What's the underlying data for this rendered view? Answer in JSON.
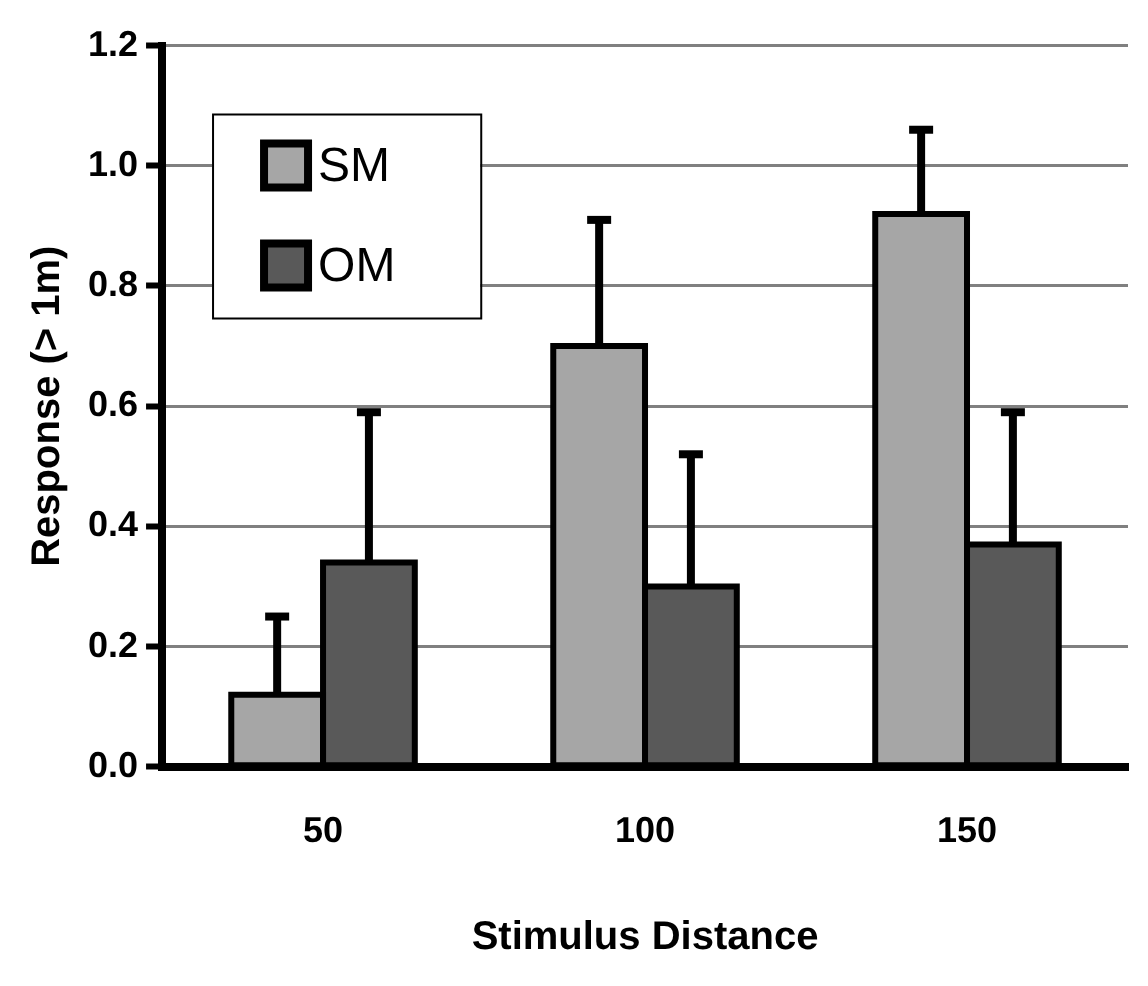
{
  "chart_data": {
    "type": "bar",
    "xlabel": "Stimulus Distance",
    "ylabel": "Response (> 1m)",
    "categories": [
      "50",
      "100",
      "150"
    ],
    "series": [
      {
        "name": "SM",
        "color": "#a6a6a6",
        "values": [
          0.12,
          0.7,
          0.92
        ],
        "errors": [
          [
            0.12,
            0.25
          ],
          [
            0.7,
            0.91
          ],
          [
            0.92,
            1.06
          ]
        ]
      },
      {
        "name": "OM",
        "color": "#595959",
        "values": [
          0.34,
          0.3,
          0.37
        ],
        "errors": [
          [
            0.34,
            0.59
          ],
          [
            0.3,
            0.52
          ],
          [
            0.37,
            0.59
          ]
        ]
      }
    ],
    "ylim": [
      0,
      1.2
    ],
    "yticks": [
      {
        "value": 0,
        "label": "0.0"
      },
      {
        "value": 0.2,
        "label": "0.2"
      },
      {
        "value": 0.4,
        "label": "0.4"
      },
      {
        "value": 0.6,
        "label": "0.6"
      },
      {
        "value": 0.8,
        "label": "0.8"
      },
      {
        "value": 1,
        "label": "1.0"
      },
      {
        "value": 1.2,
        "label": "1.2"
      }
    ],
    "grid": "y",
    "legend": "top left"
  }
}
